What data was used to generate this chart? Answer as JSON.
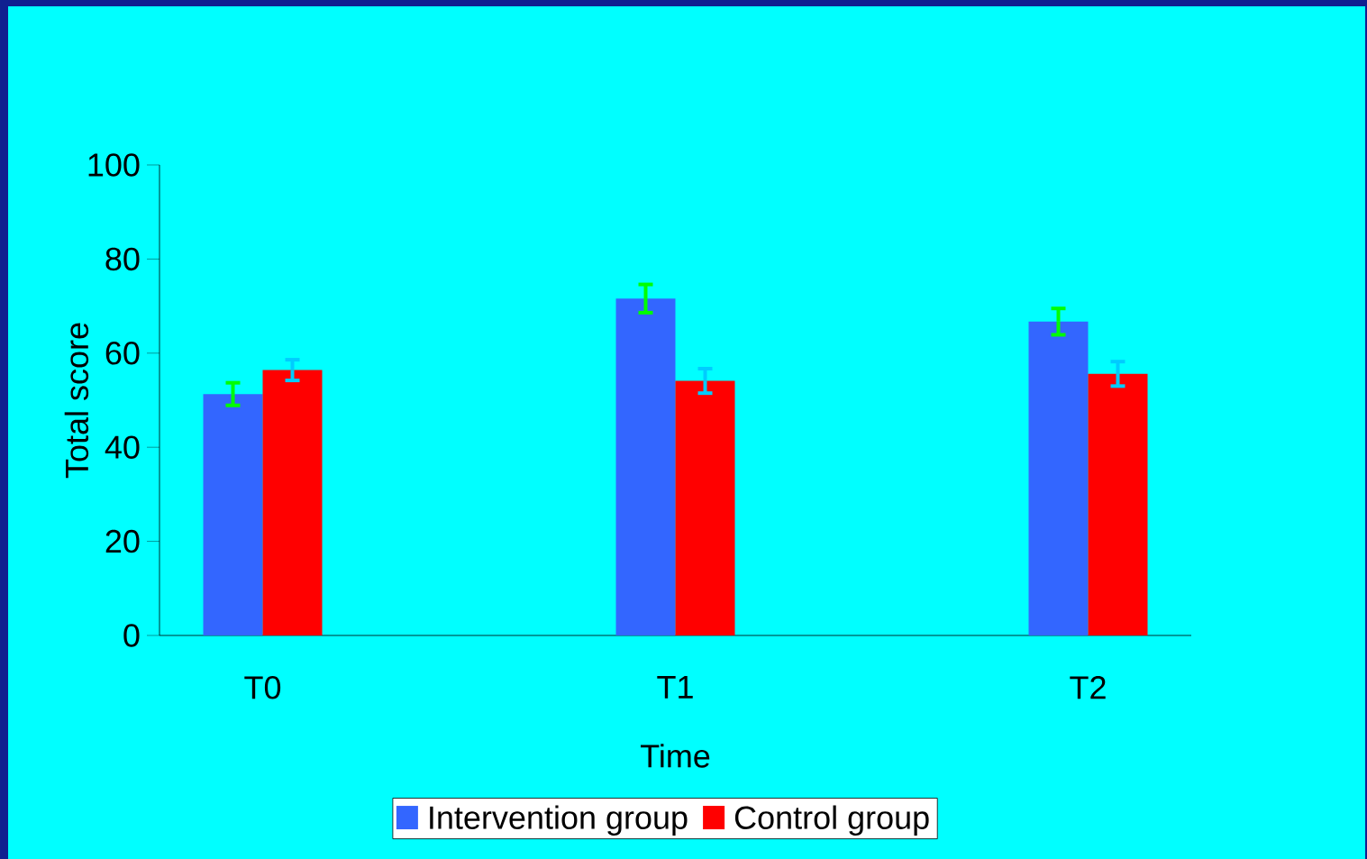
{
  "chart_data": {
    "type": "bar",
    "xlabel": "Time",
    "ylabel": "Total score",
    "categories": [
      "T0",
      "T1",
      "T2"
    ],
    "series": [
      {
        "name": "Intervention group",
        "color": "#3366ff",
        "values": [
          51.3,
          71.6,
          66.7
        ],
        "errors": [
          2.4,
          3.0,
          2.8
        ]
      },
      {
        "name": "Control group",
        "color": "#ff0000",
        "values": [
          56.4,
          54.1,
          55.6
        ],
        "errors": [
          2.2,
          2.6,
          2.6
        ]
      }
    ],
    "ylim": [
      0,
      100
    ],
    "yticks": [
      0,
      20,
      40,
      60,
      80,
      100
    ],
    "legend": "bottom"
  }
}
